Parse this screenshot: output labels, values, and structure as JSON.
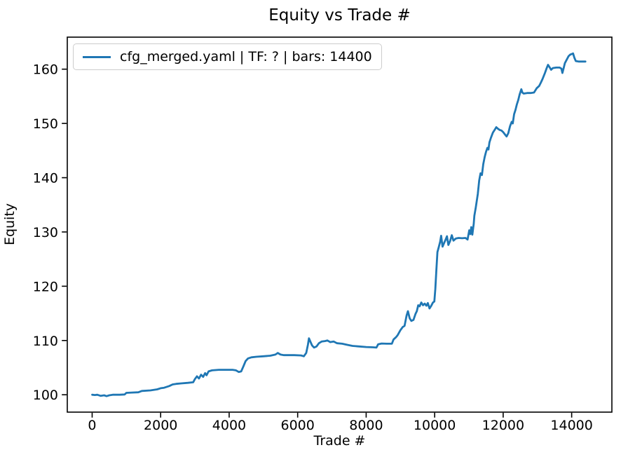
{
  "chart_data": {
    "type": "line",
    "title": "Equity vs Trade #",
    "xlabel": "Trade #",
    "ylabel": "Equity",
    "xlim": [
      -726,
      15174
    ],
    "ylim": [
      96.8,
      165.9
    ],
    "xticks": [
      0,
      2000,
      4000,
      6000,
      8000,
      10000,
      12000,
      14000
    ],
    "yticks": [
      100,
      110,
      120,
      130,
      140,
      150,
      160
    ],
    "grid": false,
    "legend_position": "upper left",
    "line_color": "#1f77b4",
    "series": [
      {
        "label": "cfg_merged.yaml | TF: ? | bars: 14400",
        "points": [
          [
            0,
            100.0
          ],
          [
            80,
            99.95
          ],
          [
            150,
            100.0
          ],
          [
            250,
            99.8
          ],
          [
            350,
            99.9
          ],
          [
            420,
            99.75
          ],
          [
            500,
            99.9
          ],
          [
            600,
            100.0
          ],
          [
            800,
            100.0
          ],
          [
            950,
            100.05
          ],
          [
            1000,
            100.35
          ],
          [
            1150,
            100.4
          ],
          [
            1350,
            100.45
          ],
          [
            1450,
            100.7
          ],
          [
            1700,
            100.8
          ],
          [
            1900,
            101.0
          ],
          [
            2000,
            101.2
          ],
          [
            2100,
            101.3
          ],
          [
            2250,
            101.6
          ],
          [
            2350,
            101.9
          ],
          [
            2450,
            102.0
          ],
          [
            2600,
            102.1
          ],
          [
            2800,
            102.2
          ],
          [
            2950,
            102.3
          ],
          [
            3000,
            102.9
          ],
          [
            3060,
            103.4
          ],
          [
            3120,
            103.0
          ],
          [
            3180,
            103.7
          ],
          [
            3240,
            103.3
          ],
          [
            3300,
            104.0
          ],
          [
            3340,
            103.6
          ],
          [
            3400,
            104.3
          ],
          [
            3500,
            104.5
          ],
          [
            3700,
            104.6
          ],
          [
            3900,
            104.6
          ],
          [
            4100,
            104.6
          ],
          [
            4200,
            104.5
          ],
          [
            4280,
            104.2
          ],
          [
            4350,
            104.3
          ],
          [
            4420,
            105.3
          ],
          [
            4480,
            106.2
          ],
          [
            4550,
            106.7
          ],
          [
            4650,
            106.9
          ],
          [
            4800,
            107.0
          ],
          [
            5000,
            107.1
          ],
          [
            5200,
            107.2
          ],
          [
            5350,
            107.4
          ],
          [
            5420,
            107.7
          ],
          [
            5500,
            107.4
          ],
          [
            5600,
            107.3
          ],
          [
            5900,
            107.3
          ],
          [
            6100,
            107.25
          ],
          [
            6180,
            107.1
          ],
          [
            6250,
            107.7
          ],
          [
            6300,
            109.2
          ],
          [
            6330,
            110.4
          ],
          [
            6370,
            109.8
          ],
          [
            6420,
            109.1
          ],
          [
            6480,
            108.7
          ],
          [
            6550,
            108.9
          ],
          [
            6620,
            109.5
          ],
          [
            6700,
            109.8
          ],
          [
            6800,
            109.9
          ],
          [
            6870,
            110.0
          ],
          [
            6950,
            109.7
          ],
          [
            7050,
            109.8
          ],
          [
            7150,
            109.5
          ],
          [
            7300,
            109.4
          ],
          [
            7450,
            109.2
          ],
          [
            7600,
            109.0
          ],
          [
            7800,
            108.9
          ],
          [
            8000,
            108.8
          ],
          [
            8200,
            108.75
          ],
          [
            8300,
            108.7
          ],
          [
            8350,
            109.3
          ],
          [
            8450,
            109.45
          ],
          [
            8600,
            109.4
          ],
          [
            8750,
            109.4
          ],
          [
            8800,
            110.2
          ],
          [
            8870,
            110.6
          ],
          [
            8920,
            111.0
          ],
          [
            9000,
            111.9
          ],
          [
            9070,
            112.5
          ],
          [
            9120,
            112.7
          ],
          [
            9180,
            114.6
          ],
          [
            9220,
            115.4
          ],
          [
            9270,
            114.1
          ],
          [
            9320,
            113.6
          ],
          [
            9380,
            113.8
          ],
          [
            9440,
            114.9
          ],
          [
            9480,
            115.4
          ],
          [
            9520,
            116.5
          ],
          [
            9560,
            116.3
          ],
          [
            9610,
            117.0
          ],
          [
            9660,
            116.5
          ],
          [
            9710,
            116.8
          ],
          [
            9760,
            116.4
          ],
          [
            9800,
            116.9
          ],
          [
            9850,
            115.9
          ],
          [
            9900,
            116.4
          ],
          [
            9950,
            117.0
          ],
          [
            9990,
            117.2
          ],
          [
            10020,
            119.5
          ],
          [
            10050,
            123.0
          ],
          [
            10080,
            126.3
          ],
          [
            10120,
            127.2
          ],
          [
            10160,
            128.2
          ],
          [
            10190,
            129.3
          ],
          [
            10230,
            127.3
          ],
          [
            10270,
            127.9
          ],
          [
            10320,
            128.6
          ],
          [
            10360,
            129.2
          ],
          [
            10400,
            127.6
          ],
          [
            10450,
            128.3
          ],
          [
            10500,
            129.4
          ],
          [
            10550,
            128.4
          ],
          [
            10620,
            128.8
          ],
          [
            10700,
            128.9
          ],
          [
            10800,
            128.85
          ],
          [
            10900,
            128.9
          ],
          [
            10960,
            128.6
          ],
          [
            11010,
            130.3
          ],
          [
            11040,
            129.6
          ],
          [
            11070,
            130.9
          ],
          [
            11100,
            129.5
          ],
          [
            11140,
            131.5
          ],
          [
            11160,
            133.0
          ],
          [
            11200,
            134.5
          ],
          [
            11260,
            137.0
          ],
          [
            11300,
            139.5
          ],
          [
            11340,
            140.8
          ],
          [
            11380,
            140.5
          ],
          [
            11420,
            142.5
          ],
          [
            11460,
            143.8
          ],
          [
            11500,
            144.8
          ],
          [
            11540,
            145.5
          ],
          [
            11570,
            145.2
          ],
          [
            11600,
            146.5
          ],
          [
            11640,
            147.3
          ],
          [
            11700,
            148.3
          ],
          [
            11750,
            148.8
          ],
          [
            11800,
            149.3
          ],
          [
            11850,
            149.0
          ],
          [
            11900,
            148.8
          ],
          [
            11950,
            148.7
          ],
          [
            12000,
            148.4
          ],
          [
            12050,
            148.0
          ],
          [
            12100,
            147.6
          ],
          [
            12150,
            148.2
          ],
          [
            12200,
            149.5
          ],
          [
            12250,
            150.3
          ],
          [
            12280,
            150.0
          ],
          [
            12320,
            151.7
          ],
          [
            12360,
            152.5
          ],
          [
            12400,
            153.5
          ],
          [
            12440,
            154.3
          ],
          [
            12480,
            155.3
          ],
          [
            12530,
            156.3
          ],
          [
            12560,
            155.7
          ],
          [
            12600,
            155.5
          ],
          [
            12700,
            155.6
          ],
          [
            12800,
            155.6
          ],
          [
            12900,
            155.7
          ],
          [
            12980,
            156.5
          ],
          [
            13050,
            156.9
          ],
          [
            13100,
            157.5
          ],
          [
            13150,
            158.2
          ],
          [
            13220,
            159.3
          ],
          [
            13270,
            160.2
          ],
          [
            13310,
            160.8
          ],
          [
            13360,
            160.3
          ],
          [
            13400,
            159.9
          ],
          [
            13450,
            160.2
          ],
          [
            13550,
            160.3
          ],
          [
            13650,
            160.3
          ],
          [
            13700,
            160.1
          ],
          [
            13730,
            159.3
          ],
          [
            13770,
            160.3
          ],
          [
            13800,
            161.1
          ],
          [
            13860,
            161.8
          ],
          [
            13910,
            162.4
          ],
          [
            13960,
            162.7
          ],
          [
            14010,
            162.8
          ],
          [
            14040,
            162.9
          ],
          [
            14080,
            162.1
          ],
          [
            14120,
            161.5
          ],
          [
            14200,
            161.4
          ],
          [
            14300,
            161.4
          ],
          [
            14400,
            161.4
          ]
        ]
      }
    ]
  }
}
